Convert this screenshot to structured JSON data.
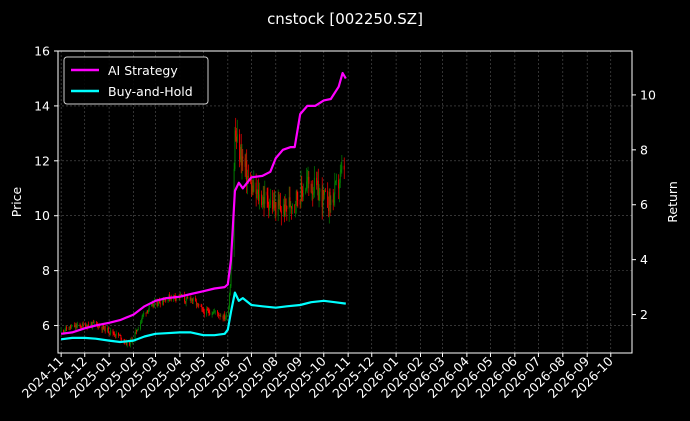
{
  "chart_data": {
    "type": "line",
    "title": "cnstock [002250.SZ]",
    "xlabel": "",
    "ylabel": "Price",
    "y2label": "Return",
    "ylim": [
      5.0,
      16.0
    ],
    "y2lim": [
      0.6,
      11.6
    ],
    "yticks": [
      6,
      8,
      10,
      12,
      14,
      16
    ],
    "y2ticks": [
      2,
      4,
      6,
      8,
      10
    ],
    "xlim": [
      "2024-10-28",
      "2026-10-28"
    ],
    "x_ticks": [
      "2024-11",
      "2024-12",
      "2025-01",
      "2025-02",
      "2025-03",
      "2025-04",
      "2025-05",
      "2025-06",
      "2025-07",
      "2025-08",
      "2025-09",
      "2025-10",
      "2025-11",
      "2025-12",
      "2026-01",
      "2026-02",
      "2026-03",
      "2026-04",
      "2026-05",
      "2026-06",
      "2026-07",
      "2026-08",
      "2026-09",
      "2026-10"
    ],
    "grid": true,
    "legend_position": "top-left",
    "colors": {
      "background": "#000000",
      "ai": "#ff00ff",
      "bh": "#00ffff",
      "up": "#008000",
      "down": "#ff0000",
      "grid": "#555555"
    },
    "price": {
      "name": "",
      "axis": "left",
      "dates": [
        "2024-11-01",
        "2024-11-15",
        "2024-12-01",
        "2024-12-15",
        "2025-01-01",
        "2025-01-15",
        "2025-01-25",
        "2025-02-01",
        "2025-02-15",
        "2025-03-01",
        "2025-03-15",
        "2025-04-01",
        "2025-04-08",
        "2025-04-15",
        "2025-05-01",
        "2025-05-15",
        "2025-05-28",
        "2025-06-01",
        "2025-06-04",
        "2025-06-07",
        "2025-06-10",
        "2025-06-14",
        "2025-06-20",
        "2025-06-25",
        "2025-07-01",
        "2025-07-10",
        "2025-07-20",
        "2025-08-01",
        "2025-08-10",
        "2025-08-20",
        "2025-09-01",
        "2025-09-10",
        "2025-09-20",
        "2025-10-01",
        "2025-10-10",
        "2025-10-20",
        "2025-10-27"
      ],
      "values": [
        5.8,
        5.95,
        6.0,
        6.05,
        5.8,
        5.6,
        5.3,
        5.55,
        6.5,
        6.8,
        7.0,
        7.1,
        6.9,
        7.0,
        6.5,
        6.5,
        6.3,
        6.4,
        7.5,
        9.5,
        13.0,
        12.5,
        12.0,
        11.5,
        11.0,
        10.7,
        10.6,
        10.3,
        10.2,
        10.5,
        10.8,
        11.2,
        11.0,
        10.6,
        10.5,
        11.2,
        11.8
      ]
    },
    "series": [
      {
        "name": "AI Strategy",
        "axis": "right",
        "dates": [
          "2024-11-01",
          "2024-11-15",
          "2024-12-01",
          "2024-12-15",
          "2025-01-01",
          "2025-01-15",
          "2025-02-01",
          "2025-02-15",
          "2025-03-01",
          "2025-03-15",
          "2025-04-01",
          "2025-04-15",
          "2025-05-01",
          "2025-05-15",
          "2025-05-28",
          "2025-06-01",
          "2025-06-05",
          "2025-06-10",
          "2025-06-15",
          "2025-06-20",
          "2025-07-01",
          "2025-07-15",
          "2025-07-25",
          "2025-08-01",
          "2025-08-10",
          "2025-08-20",
          "2025-08-25",
          "2025-09-01",
          "2025-09-10",
          "2025-09-20",
          "2025-10-01",
          "2025-10-10",
          "2025-10-20",
          "2025-10-25",
          "2025-10-29"
        ],
        "values": [
          1.3,
          1.35,
          1.5,
          1.6,
          1.7,
          1.8,
          2.0,
          2.3,
          2.5,
          2.6,
          2.65,
          2.75,
          2.85,
          2.95,
          3.0,
          3.1,
          4.0,
          6.5,
          6.8,
          6.6,
          7.0,
          7.05,
          7.2,
          7.7,
          8.0,
          8.1,
          8.1,
          9.3,
          9.6,
          9.6,
          9.8,
          9.85,
          10.3,
          10.8,
          10.6
        ]
      },
      {
        "name": "Buy-and-Hold",
        "axis": "right",
        "dates": [
          "2024-11-01",
          "2024-11-15",
          "2024-12-01",
          "2024-12-15",
          "2025-01-01",
          "2025-01-15",
          "2025-02-01",
          "2025-02-15",
          "2025-03-01",
          "2025-03-15",
          "2025-04-01",
          "2025-04-15",
          "2025-05-01",
          "2025-05-15",
          "2025-05-28",
          "2025-06-01",
          "2025-06-05",
          "2025-06-10",
          "2025-06-15",
          "2025-06-20",
          "2025-07-01",
          "2025-07-15",
          "2025-08-01",
          "2025-08-15",
          "2025-09-01",
          "2025-09-15",
          "2025-10-01",
          "2025-10-15",
          "2025-10-29"
        ],
        "values": [
          1.1,
          1.15,
          1.15,
          1.12,
          1.05,
          1.0,
          1.05,
          1.2,
          1.3,
          1.32,
          1.35,
          1.35,
          1.25,
          1.25,
          1.3,
          1.45,
          2.1,
          2.8,
          2.5,
          2.6,
          2.35,
          2.3,
          2.25,
          2.3,
          2.35,
          2.45,
          2.5,
          2.45,
          2.4
        ]
      }
    ]
  }
}
